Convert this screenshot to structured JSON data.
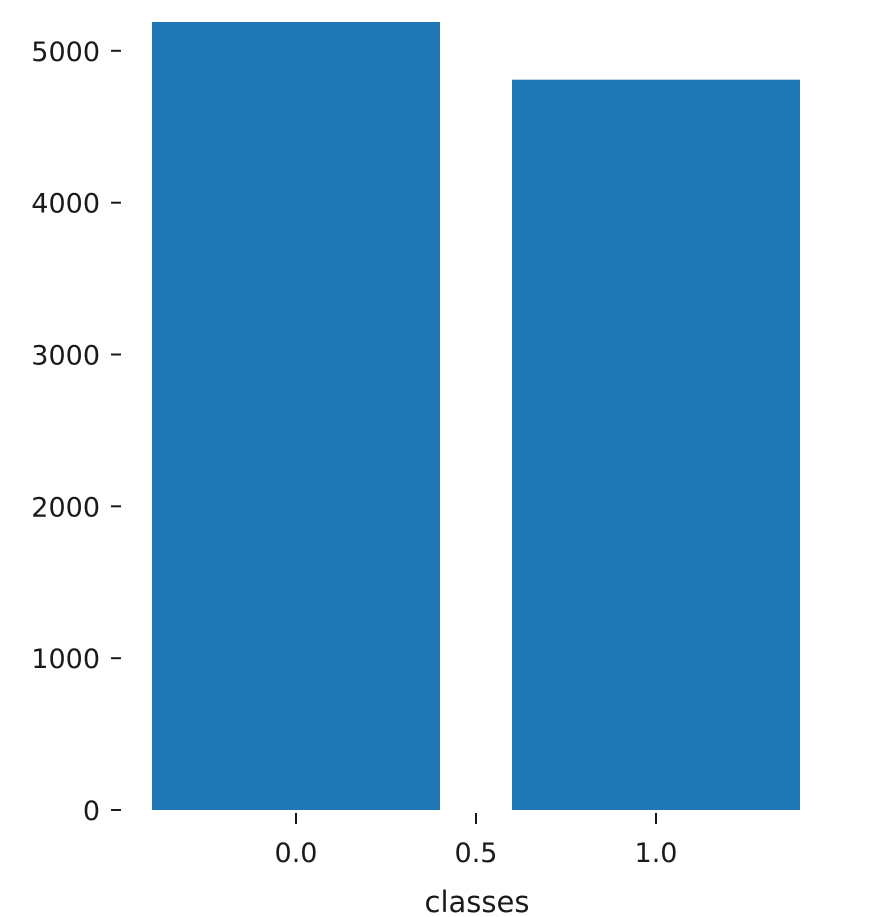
{
  "chart_data": {
    "type": "bar",
    "x": [
      0.0,
      1.0
    ],
    "values": [
      5190,
      4810
    ],
    "bar_width": 0.8,
    "bar_color": "#1f77b4",
    "title": "",
    "xlabel": "classes",
    "ylabel": "",
    "xlim": [
      -0.4,
      1.4
    ],
    "ylim": [
      0,
      5190
    ],
    "xticks": [
      0.0,
      0.5,
      1.0
    ],
    "xtick_labels": [
      "0.0",
      "0.5",
      "1.0"
    ],
    "yticks": [
      0,
      1000,
      2000,
      3000,
      4000,
      5000
    ],
    "ytick_labels": [
      "0",
      "1000",
      "2000",
      "3000",
      "4000",
      "5000"
    ],
    "grid": false,
    "legend": "none"
  }
}
